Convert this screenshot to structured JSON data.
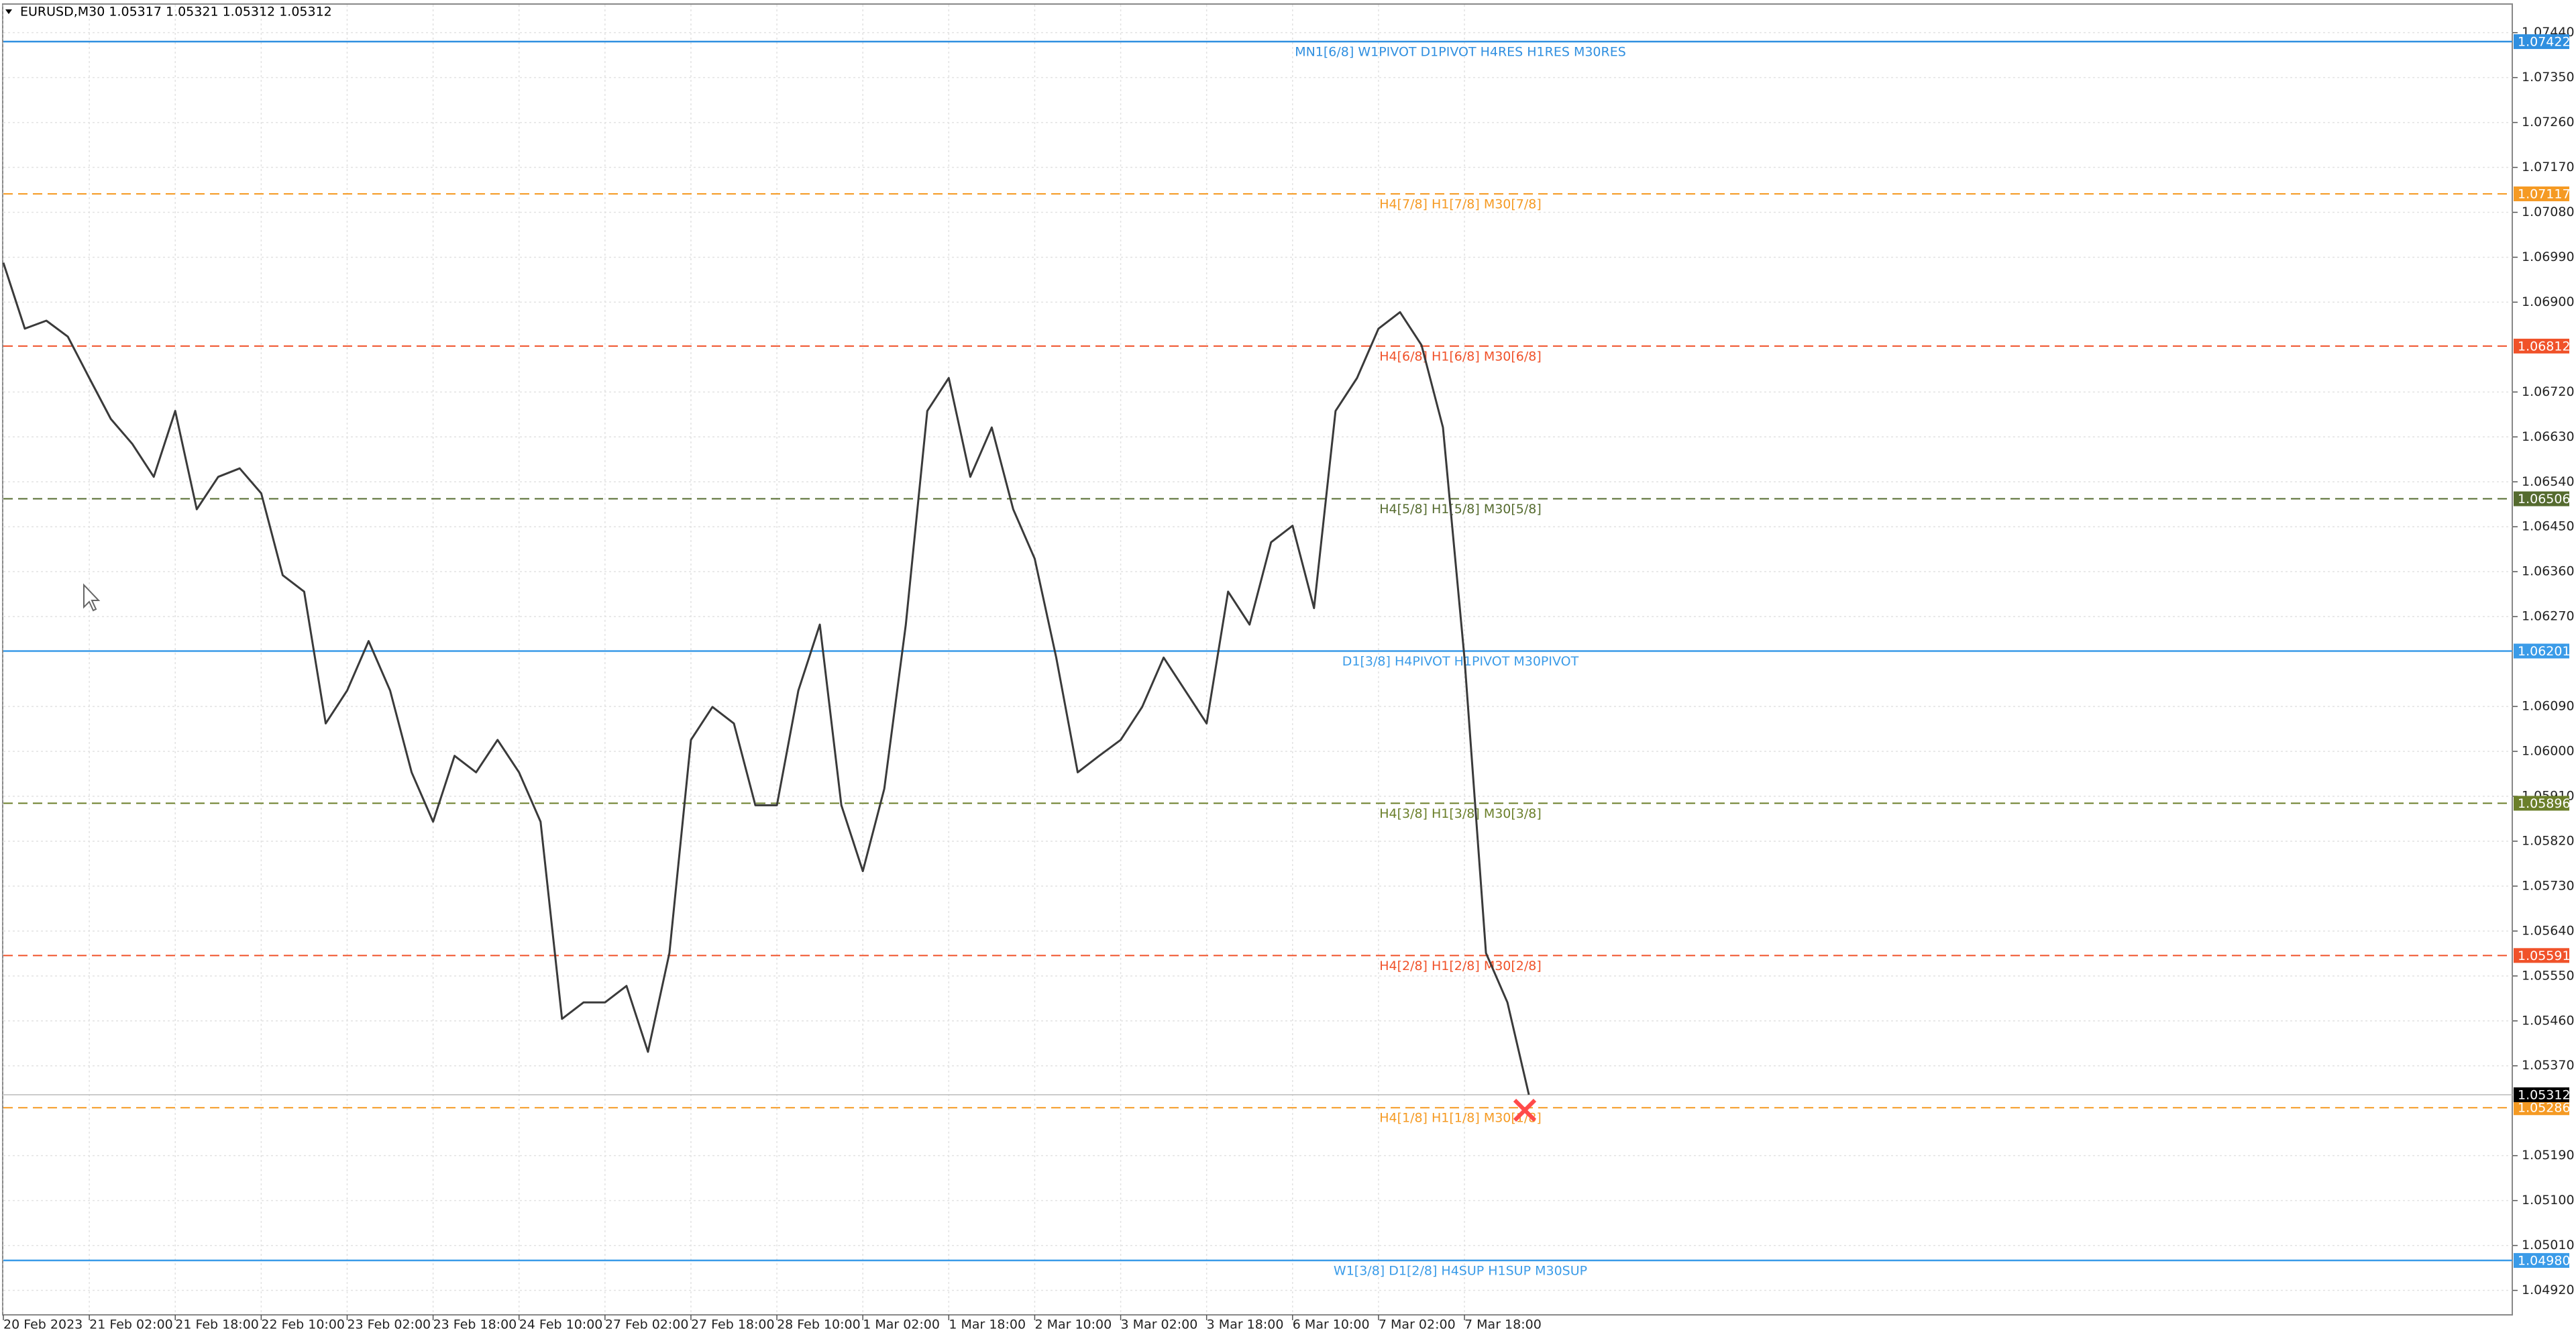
{
  "chart_data": {
    "type": "line",
    "title": "EURUSD,M30  1.05317 1.05321 1.05312 1.05312",
    "color": "#3a3a3a",
    "grid": true,
    "categories": [
      "20 Feb 2023",
      null,
      null,
      null,
      "21 Feb 02:00",
      null,
      null,
      null,
      "21 Feb 18:00",
      null,
      null,
      null,
      "22 Feb 10:00",
      null,
      null,
      null,
      "23 Feb 02:00",
      null,
      null,
      null,
      "23 Feb 18:00",
      null,
      null,
      null,
      "24 Feb 10:00",
      null,
      null,
      null,
      "27 Feb 02:00",
      null,
      null,
      null,
      "27 Feb 18:00",
      null,
      null,
      null,
      "28 Feb 10:00",
      null,
      null,
      null,
      "1 Mar 02:00",
      null,
      null,
      null,
      "1 Mar 18:00",
      null,
      null,
      null,
      "2 Mar 10:00",
      null,
      null,
      null,
      "3 Mar 02:00",
      null,
      null,
      null,
      "3 Mar 18:00",
      null,
      null,
      null,
      "6 Mar 10:00",
      null,
      null,
      null,
      "7 Mar 02:00",
      null,
      null,
      null,
      "7 Mar 18:00",
      null,
      null,
      null
    ],
    "values": [
      1.06979,
      1.06847,
      1.06863,
      1.06831,
      1.06748,
      1.06666,
      1.06616,
      1.0655,
      1.06682,
      1.06485,
      1.0655,
      1.06567,
      1.06517,
      1.06353,
      1.0632,
      1.06056,
      1.06122,
      1.06221,
      1.06122,
      1.05958,
      1.05859,
      1.05991,
      1.05958,
      1.06023,
      1.05958,
      1.05859,
      1.05464,
      1.05497,
      1.05497,
      1.0553,
      1.05398,
      1.05596,
      1.06023,
      1.06089,
      1.06056,
      1.05892,
      1.05892,
      1.06122,
      1.06254,
      1.05892,
      1.0576,
      1.05925,
      1.06254,
      1.06682,
      1.06748,
      1.0655,
      1.06649,
      1.06485,
      1.06386,
      1.06188,
      1.05958,
      1.05991,
      1.06023,
      1.06089,
      1.06188,
      1.06122,
      1.06056,
      1.0632,
      1.06254,
      1.06419,
      1.06452,
      1.06287,
      1.06682,
      1.06748,
      1.06847,
      1.0688,
      1.06814,
      1.06649,
      1.06188,
      1.05596,
      1.05497,
      1.05312
    ],
    "ylim": [
      1.04871,
      1.07496
    ],
    "yticks": [
      {
        "value": 1.0744,
        "label": "1.07440"
      },
      {
        "value": 1.0735,
        "label": "1.07350"
      },
      {
        "value": 1.0726,
        "label": "1.07260"
      },
      {
        "value": 1.0717,
        "label": "1.07170"
      },
      {
        "value": 1.0708,
        "label": "1.07080"
      },
      {
        "value": 1.0699,
        "label": "1.06990"
      },
      {
        "value": 1.069,
        "label": "1.06900"
      },
      {
        "value": 1.0672,
        "label": "1.06720"
      },
      {
        "value": 1.0663,
        "label": "1.06630"
      },
      {
        "value": 1.0654,
        "label": "1.06540"
      },
      {
        "value": 1.0645,
        "label": "1.06450"
      },
      {
        "value": 1.0636,
        "label": "1.06360"
      },
      {
        "value": 1.0627,
        "label": "1.06270"
      },
      {
        "value": 1.0609,
        "label": "1.06090"
      },
      {
        "value": 1.06,
        "label": "1.06000"
      },
      {
        "value": 1.0591,
        "label": "1.05910"
      },
      {
        "value": 1.0582,
        "label": "1.05820"
      },
      {
        "value": 1.0573,
        "label": "1.05730"
      },
      {
        "value": 1.0564,
        "label": "1.05640"
      },
      {
        "value": 1.0555,
        "label": "1.05550"
      },
      {
        "value": 1.0546,
        "label": "1.05460"
      },
      {
        "value": 1.0537,
        "label": "1.05370"
      },
      {
        "value": 1.0519,
        "label": "1.05190"
      },
      {
        "value": 1.051,
        "label": "1.05100"
      },
      {
        "value": 1.0501,
        "label": "1.05010"
      },
      {
        "value": 1.0492,
        "label": "1.04920"
      }
    ],
    "levels": [
      {
        "value": 1.07422,
        "price_label": "1.07422",
        "label": "MN1[6/8] W1PIVOT D1PIVOT H4RES H1RES M30RES",
        "color": "#2f8fe0",
        "box": "#2f8fe0",
        "style": "solid"
      },
      {
        "value": 1.07117,
        "price_label": "1.07117",
        "label": "H4[7/8] H1[7/8] M30[7/8]",
        "color": "#f59a23",
        "box": "#f59a23",
        "style": "dashed"
      },
      {
        "value": 1.06812,
        "price_label": "1.06812",
        "label": "H4[6/8] H1[6/8] M30[6/8]",
        "color": "#f0522a",
        "box": "#f0522a",
        "style": "dashed"
      },
      {
        "value": 1.06506,
        "price_label": "1.06506",
        "label": "H4[5/8] H1[5/8] M30[5/8]",
        "color": "#556b2f",
        "box": "#556b2f",
        "style": "dashed"
      },
      {
        "value": 1.06201,
        "price_label": "1.06201",
        "label": "D1[3/8] H4PIVOT H1PIVOT M30PIVOT",
        "color": "#3a9be8",
        "box": "#3a9be8",
        "style": "solid"
      },
      {
        "value": 1.05896,
        "price_label": "1.05896",
        "label": "H4[3/8] H1[3/8] M30[3/8]",
        "color": "#6b7f2a",
        "box": "#6b7f2a",
        "style": "dashed"
      },
      {
        "value": 1.05591,
        "price_label": "1.05591",
        "label": "H4[2/8] H1[2/8] M30[2/8]",
        "color": "#f0522a",
        "box": "#f0522a",
        "style": "dashed"
      },
      {
        "value": 1.05286,
        "price_label": "1.05286",
        "label": "H4[1/8] H1[1/8] M30[1/8]",
        "color": "#f59a23",
        "box": "#f59a23",
        "style": "dashed"
      },
      {
        "value": 1.0498,
        "price_label": "1.04980",
        "label": "W1[3/8] D1[2/8] H4SUP H1SUP M30SUP",
        "color": "#3a9be8",
        "box": "#3a9be8",
        "style": "solid"
      }
    ],
    "last": {
      "value": 1.05312,
      "label": "1.05312"
    }
  }
}
